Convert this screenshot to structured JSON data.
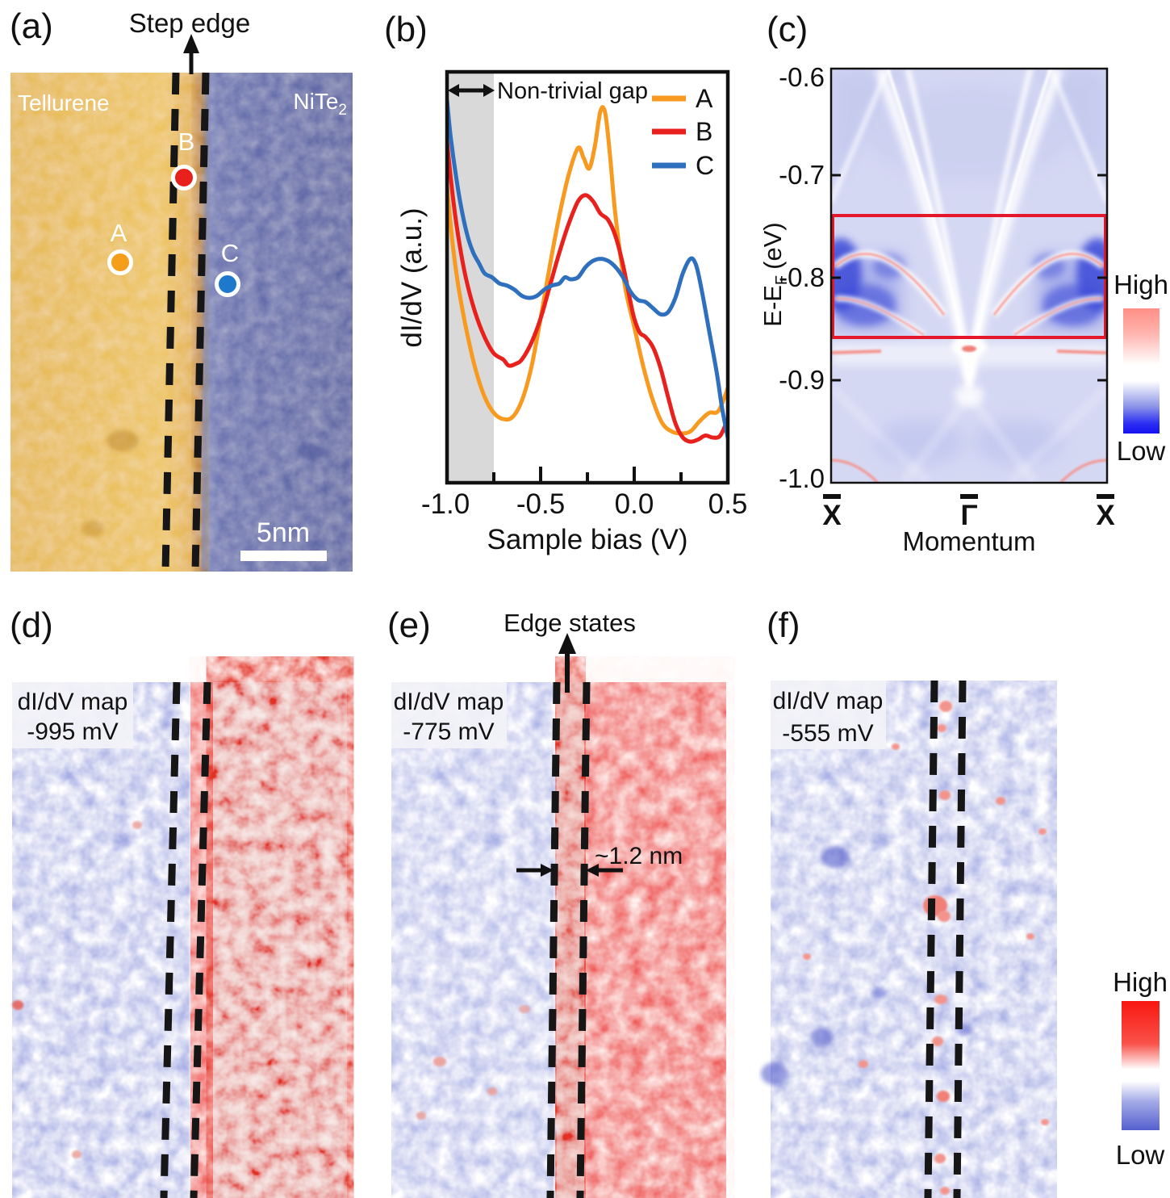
{
  "figure": {
    "background": "#ffffff",
    "panels": {
      "a": {
        "label": "(a)",
        "step_edge": "Step edge",
        "left_material": "Tellurene",
        "right_material": "NiTe",
        "right_material_sub": "2",
        "point_a": "A",
        "point_b": "B",
        "point_c": "C",
        "scale_bar": "5nm",
        "colors": {
          "tellurene": "#EBBE4C",
          "nite2": "#5A64A9",
          "point_a": "#F59E1B",
          "point_b": "#E8211D",
          "point_c": "#1E79CC"
        }
      },
      "b": {
        "label": "(b)",
        "gap_label": "Non-trivial gap",
        "ylabel": "dI/dV (a.u.)",
        "xlabel": "Sample bias (V)",
        "x_tick_labels": [
          "-1.0",
          "-0.5",
          "0.0",
          "0.5"
        ],
        "legend": [
          "A",
          "B",
          "C"
        ]
      },
      "c": {
        "label": "(c)",
        "ylabel_main": "E-E",
        "ylabel_sub": "F",
        "ylabel_unit": "(eV)",
        "xlabel": "Momentum",
        "y_tick_labels": [
          "-0.6",
          "-0.7",
          "-0.8",
          "-0.9",
          "-1.0"
        ],
        "x_tick_labels": [
          "X",
          "Γ",
          "X"
        ],
        "colorbar_high": "High",
        "colorbar_low": "Low",
        "highlight_box_color": "#E5172B"
      },
      "d": {
        "label": "(d)",
        "map_label": "dI/dV map",
        "bias_label": "-995 mV"
      },
      "e": {
        "label": "(e)",
        "map_label": "dI/dV map",
        "bias_label": "-775 mV",
        "annotation": "Edge states",
        "width_label": "~1.2 nm"
      },
      "f": {
        "label": "(f)",
        "map_label": "dI/dV map",
        "bias_label": "-555 mV",
        "colorbar_high": "High",
        "colorbar_low": "Low"
      }
    }
  },
  "chart_data": [
    {
      "type": "line",
      "xlabel": "Sample bias (V)",
      "ylabel": "dI/dV (a.u.)",
      "xlim": [
        -1.0,
        0.5
      ],
      "x_ticks": [
        -1.0,
        -0.5,
        0.0,
        0.5
      ],
      "x_minor_ticks": [
        -0.75,
        -0.25,
        0.25
      ],
      "y_unit": "arbitrary units, normalized 0-1 (1 = plot top)",
      "grid": false,
      "legend_position": "top-right",
      "shaded_region": {
        "label": "Non-trivial gap",
        "x_range": [
          -1.0,
          -0.75
        ],
        "color": "#D9D9D9"
      },
      "series": [
        {
          "name": "A",
          "color": "#F79A1F",
          "points": [
            [
              -1.0,
              0.72
            ],
            [
              -0.97,
              0.58
            ],
            [
              -0.94,
              0.48
            ],
            [
              -0.9,
              0.38
            ],
            [
              -0.85,
              0.28
            ],
            [
              -0.8,
              0.21
            ],
            [
              -0.75,
              0.17
            ],
            [
              -0.7,
              0.155
            ],
            [
              -0.65,
              0.16
            ],
            [
              -0.6,
              0.2
            ],
            [
              -0.55,
              0.28
            ],
            [
              -0.5,
              0.4
            ],
            [
              -0.45,
              0.53
            ],
            [
              -0.4,
              0.65
            ],
            [
              -0.35,
              0.75
            ],
            [
              -0.3,
              0.815
            ],
            [
              -0.27,
              0.79
            ],
            [
              -0.24,
              0.765
            ],
            [
              -0.21,
              0.82
            ],
            [
              -0.18,
              0.905
            ],
            [
              -0.155,
              0.9
            ],
            [
              -0.13,
              0.8
            ],
            [
              -0.1,
              0.65
            ],
            [
              -0.05,
              0.48
            ],
            [
              0.0,
              0.38
            ],
            [
              0.05,
              0.28
            ],
            [
              0.1,
              0.2
            ],
            [
              0.15,
              0.145
            ],
            [
              0.2,
              0.125
            ],
            [
              0.25,
              0.12
            ],
            [
              0.3,
              0.125
            ],
            [
              0.35,
              0.15
            ],
            [
              0.4,
              0.17
            ],
            [
              0.45,
              0.175
            ],
            [
              0.5,
              0.23
            ]
          ]
        },
        {
          "name": "B",
          "color": "#E8211D",
          "points": [
            [
              -1.0,
              0.83
            ],
            [
              -0.97,
              0.7
            ],
            [
              -0.94,
              0.6
            ],
            [
              -0.9,
              0.5
            ],
            [
              -0.85,
              0.415
            ],
            [
              -0.8,
              0.355
            ],
            [
              -0.75,
              0.315
            ],
            [
              -0.7,
              0.3
            ],
            [
              -0.67,
              0.285
            ],
            [
              -0.63,
              0.29
            ],
            [
              -0.6,
              0.3
            ],
            [
              -0.55,
              0.34
            ],
            [
              -0.5,
              0.4
            ],
            [
              -0.45,
              0.48
            ],
            [
              -0.4,
              0.56
            ],
            [
              -0.35,
              0.63
            ],
            [
              -0.3,
              0.685
            ],
            [
              -0.26,
              0.7
            ],
            [
              -0.22,
              0.685
            ],
            [
              -0.18,
              0.655
            ],
            [
              -0.14,
              0.64
            ],
            [
              -0.1,
              0.6
            ],
            [
              -0.06,
              0.53
            ],
            [
              -0.02,
              0.44
            ],
            [
              0.0,
              0.4
            ],
            [
              0.03,
              0.365
            ],
            [
              0.06,
              0.355
            ],
            [
              0.1,
              0.33
            ],
            [
              0.14,
              0.28
            ],
            [
              0.18,
              0.21
            ],
            [
              0.22,
              0.145
            ],
            [
              0.26,
              0.11
            ],
            [
              0.3,
              0.1
            ],
            [
              0.34,
              0.105
            ],
            [
              0.38,
              0.115
            ],
            [
              0.42,
              0.11
            ],
            [
              0.46,
              0.115
            ],
            [
              0.5,
              0.155
            ]
          ]
        },
        {
          "name": "C",
          "color": "#2E6FBE",
          "points": [
            [
              -1.0,
              0.93
            ],
            [
              -0.98,
              0.84
            ],
            [
              -0.95,
              0.74
            ],
            [
              -0.92,
              0.66
            ],
            [
              -0.89,
              0.6
            ],
            [
              -0.86,
              0.56
            ],
            [
              -0.83,
              0.535
            ],
            [
              -0.8,
              0.51
            ],
            [
              -0.76,
              0.5
            ],
            [
              -0.72,
              0.485
            ],
            [
              -0.68,
              0.48
            ],
            [
              -0.64,
              0.47
            ],
            [
              -0.6,
              0.455
            ],
            [
              -0.56,
              0.45
            ],
            [
              -0.52,
              0.455
            ],
            [
              -0.48,
              0.47
            ],
            [
              -0.44,
              0.48
            ],
            [
              -0.4,
              0.485
            ],
            [
              -0.37,
              0.5
            ],
            [
              -0.34,
              0.495
            ],
            [
              -0.3,
              0.5
            ],
            [
              -0.26,
              0.525
            ],
            [
              -0.22,
              0.54
            ],
            [
              -0.18,
              0.545
            ],
            [
              -0.14,
              0.54
            ],
            [
              -0.1,
              0.525
            ],
            [
              -0.06,
              0.5
            ],
            [
              -0.02,
              0.465
            ],
            [
              0.02,
              0.445
            ],
            [
              0.06,
              0.44
            ],
            [
              0.1,
              0.425
            ],
            [
              0.14,
              0.41
            ],
            [
              0.18,
              0.415
            ],
            [
              0.22,
              0.45
            ],
            [
              0.26,
              0.51
            ],
            [
              0.3,
              0.545
            ],
            [
              0.33,
              0.53
            ],
            [
              0.36,
              0.47
            ],
            [
              0.4,
              0.37
            ],
            [
              0.44,
              0.27
            ],
            [
              0.47,
              0.18
            ],
            [
              0.5,
              0.11
            ]
          ]
        }
      ]
    },
    {
      "type": "heatmap",
      "xlabel": "Momentum",
      "x_ticks": [
        "X̄",
        "Γ̄",
        "X̄"
      ],
      "ylabel": "E-EF (eV)",
      "ylim": [
        -1.0,
        -0.6
      ],
      "y_ticks": [
        -0.6,
        -0.7,
        -0.8,
        -0.9,
        -1.0
      ],
      "colorbar": {
        "high": "High",
        "low": "Low"
      },
      "highlighted_energy_window_eV": [
        -0.74,
        -0.86
      ],
      "legend_position": "right"
    }
  ]
}
